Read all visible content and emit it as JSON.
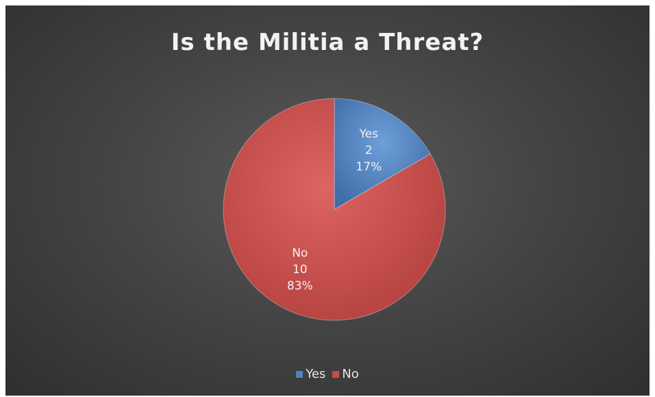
{
  "chart_data": {
    "type": "pie",
    "title": "Is the Militia a Threat?",
    "categories": [
      "Yes",
      "No"
    ],
    "values": [
      2,
      10
    ],
    "percent_labels": [
      "17%",
      "83%"
    ],
    "colors": [
      "#4f81bd",
      "#c0504d"
    ],
    "legend": {
      "placement": "bottom",
      "entries": [
        "Yes",
        "No"
      ]
    }
  }
}
